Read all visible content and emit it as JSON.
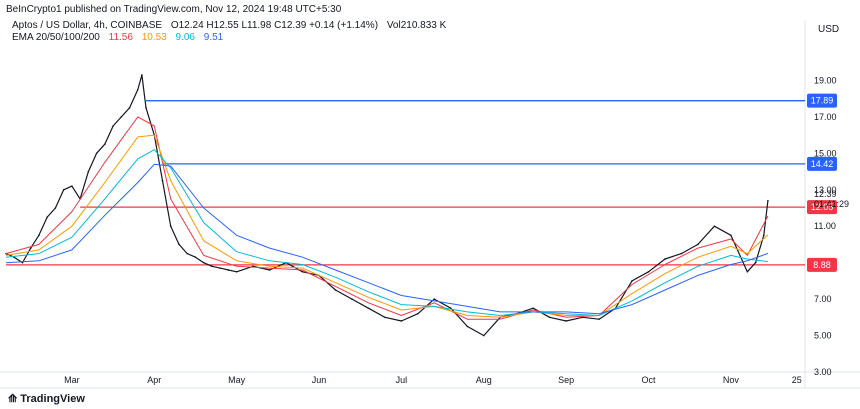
{
  "header": {
    "publisher_line": "BeInCrypto1 published on TradingView.com, Nov 12, 2024 19:48 UTC+5:30",
    "symbol": "Aptos / US Dollar, 4h, COINBASE",
    "ohlc": "O12.24  H12.55  L11.98  C12.39  +0.14 (+1.14%)",
    "volume": "Vol210.833 K"
  },
  "ema_legend": {
    "label": "EMA 20/50/100/200",
    "values": [
      "11.56",
      "10.53",
      "9.06",
      "9.51"
    ],
    "colors": [
      "#f23645",
      "#ff9800",
      "#00bcd4",
      "#2962ff"
    ]
  },
  "currency": "USD",
  "price_box": {
    "price": "12.39",
    "countdown": "01:41:29"
  },
  "footer": {
    "logo_text": "TradingView"
  },
  "chart_data": {
    "type": "line",
    "title": "Aptos / US Dollar, 4h, COINBASE",
    "ylim": [
      3,
      21
    ],
    "y_ticks": [
      3,
      5,
      7,
      9,
      11,
      13,
      15,
      17,
      19
    ],
    "y_tick_labels": [
      "3.00",
      "5.00",
      "7.00",
      "9.00",
      "11.00",
      "13.00",
      "15.00",
      "17.00",
      "19.00"
    ],
    "x_range": [
      0,
      9.7
    ],
    "x_ticks": [
      {
        "pos": 0.8,
        "label": "Mar"
      },
      {
        "pos": 1.8,
        "label": "Apr"
      },
      {
        "pos": 2.8,
        "label": "May"
      },
      {
        "pos": 3.8,
        "label": "Jun"
      },
      {
        "pos": 4.8,
        "label": "Jul"
      },
      {
        "pos": 5.8,
        "label": "Aug"
      },
      {
        "pos": 6.8,
        "label": "Sep"
      },
      {
        "pos": 7.8,
        "label": "Oct"
      },
      {
        "pos": 8.8,
        "label": "Nov"
      },
      {
        "pos": 9.6,
        "label": "25"
      }
    ],
    "horizontal_levels": [
      {
        "value": 17.89,
        "label": "17.89",
        "color": "#2962ff",
        "x_start": 1.7
      },
      {
        "value": 14.42,
        "label": "14.42",
        "color": "#2962ff",
        "x_start": 1.9
      },
      {
        "value": 12.05,
        "label": "12.05",
        "color": "#f23645",
        "x_start": 0.9
      },
      {
        "value": 8.88,
        "label": "8.88",
        "color": "#f23645",
        "x_start": 0.0
      }
    ],
    "series": [
      {
        "role": "price",
        "color": "#131722",
        "x": [
          0.0,
          0.1,
          0.2,
          0.3,
          0.4,
          0.5,
          0.6,
          0.7,
          0.8,
          0.9,
          1.0,
          1.1,
          1.2,
          1.3,
          1.4,
          1.5,
          1.6,
          1.65,
          1.7,
          1.8,
          1.9,
          2.0,
          2.1,
          2.2,
          2.3,
          2.4,
          2.5,
          2.6,
          2.7,
          2.8,
          3.0,
          3.2,
          3.4,
          3.6,
          3.8,
          4.0,
          4.2,
          4.4,
          4.6,
          4.8,
          5.0,
          5.2,
          5.4,
          5.6,
          5.8,
          6.0,
          6.2,
          6.4,
          6.6,
          6.8,
          7.0,
          7.2,
          7.4,
          7.6,
          7.8,
          8.0,
          8.2,
          8.4,
          8.6,
          8.8,
          9.0,
          9.1,
          9.2,
          9.25
        ],
        "y": [
          9.5,
          9.3,
          9.0,
          9.8,
          10.5,
          11.5,
          12.0,
          13.0,
          13.2,
          12.5,
          14.0,
          15.0,
          15.5,
          16.5,
          17.0,
          17.5,
          18.5,
          19.3,
          17.5,
          16.0,
          13.5,
          11.0,
          10.0,
          9.5,
          9.3,
          9.0,
          8.8,
          8.7,
          8.6,
          8.5,
          8.8,
          8.6,
          9.0,
          8.5,
          8.3,
          7.5,
          7.0,
          6.5,
          6.0,
          5.8,
          6.2,
          7.0,
          6.5,
          5.5,
          5.0,
          6.0,
          6.2,
          6.5,
          6.0,
          5.8,
          6.0,
          5.9,
          6.5,
          8.0,
          8.5,
          9.2,
          9.5,
          10.0,
          11.0,
          10.5,
          8.5,
          9.0,
          10.5,
          12.4
        ]
      },
      {
        "role": "ema20",
        "color": "#f23645",
        "x": [
          0.0,
          0.4,
          0.8,
          1.2,
          1.6,
          1.8,
          2.0,
          2.4,
          2.8,
          3.2,
          3.6,
          4.0,
          4.4,
          4.8,
          5.2,
          5.6,
          6.0,
          6.4,
          6.8,
          7.2,
          7.6,
          8.0,
          8.4,
          8.8,
          9.0,
          9.25
        ],
        "y": [
          9.5,
          10.0,
          11.8,
          14.5,
          17.0,
          16.5,
          12.5,
          9.4,
          8.8,
          8.7,
          8.6,
          7.7,
          6.8,
          6.1,
          6.8,
          5.9,
          5.9,
          6.4,
          6.0,
          6.1,
          7.8,
          8.9,
          9.8,
          10.3,
          9.4,
          11.56
        ]
      },
      {
        "role": "ema50",
        "color": "#ff9800",
        "x": [
          0.0,
          0.4,
          0.8,
          1.2,
          1.6,
          1.8,
          2.0,
          2.4,
          2.8,
          3.2,
          3.6,
          4.0,
          4.4,
          4.8,
          5.2,
          5.6,
          6.0,
          6.4,
          6.8,
          7.2,
          7.6,
          8.0,
          8.4,
          8.8,
          9.0,
          9.25
        ],
        "y": [
          9.4,
          9.7,
          11.0,
          13.4,
          15.9,
          16.0,
          13.5,
          10.2,
          9.1,
          8.8,
          8.7,
          7.9,
          7.1,
          6.4,
          6.6,
          6.1,
          6.0,
          6.3,
          6.1,
          6.1,
          7.3,
          8.4,
          9.3,
          9.9,
          9.5,
          10.53
        ]
      },
      {
        "role": "ema100",
        "color": "#00bcd4",
        "x": [
          0.0,
          0.4,
          0.8,
          1.2,
          1.6,
          1.8,
          2.0,
          2.4,
          2.8,
          3.2,
          3.6,
          4.0,
          4.4,
          4.8,
          5.2,
          5.6,
          6.0,
          6.4,
          6.8,
          7.2,
          7.6,
          8.0,
          8.4,
          8.8,
          9.0,
          9.25
        ],
        "y": [
          9.3,
          9.5,
          10.4,
          12.5,
          14.7,
          15.2,
          14.2,
          11.2,
          9.6,
          9.1,
          8.9,
          8.2,
          7.4,
          6.7,
          6.6,
          6.3,
          6.1,
          6.3,
          6.2,
          6.1,
          6.9,
          7.9,
          8.8,
          9.4,
          9.2,
          9.06
        ]
      },
      {
        "role": "ema200",
        "color": "#2962ff",
        "x": [
          0.0,
          0.4,
          0.8,
          1.2,
          1.6,
          1.8,
          2.0,
          2.4,
          2.8,
          3.2,
          3.6,
          4.0,
          4.4,
          4.8,
          5.2,
          5.6,
          6.0,
          6.4,
          6.8,
          7.2,
          7.6,
          8.0,
          8.4,
          8.8,
          9.0,
          9.25
        ],
        "y": [
          9.0,
          9.1,
          9.7,
          11.6,
          13.4,
          14.4,
          14.3,
          12.0,
          10.5,
          9.8,
          9.3,
          8.6,
          7.9,
          7.2,
          6.9,
          6.6,
          6.3,
          6.3,
          6.3,
          6.2,
          6.7,
          7.5,
          8.3,
          8.9,
          9.1,
          9.51
        ]
      }
    ]
  }
}
